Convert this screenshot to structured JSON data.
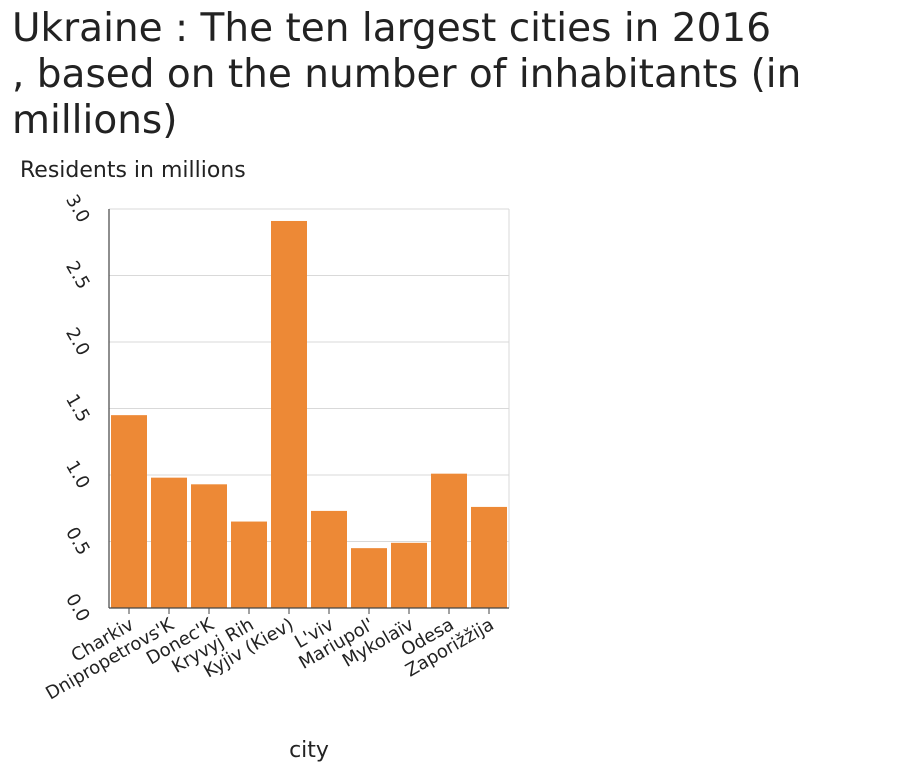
{
  "chart_data": {
    "type": "bar",
    "title": "Ukraine : The ten largest cities in 2016\n, based on the number of inhabitants (in\nmillions)",
    "xlabel": "city",
    "ylabel": "Residents in millions",
    "categories": [
      "Charkiv",
      "Dnipropetrovs'K",
      "Donec'K",
      "Kryvyj Rih",
      "Kyjiv (Kiev)",
      "L'viv",
      "Mariupol'",
      "Mykolaïv",
      "Odesa",
      "Zaporižžija"
    ],
    "values": [
      1.45,
      0.98,
      0.93,
      0.65,
      2.91,
      0.73,
      0.45,
      0.49,
      1.01,
      0.76
    ],
    "ylim": [
      0,
      3.0
    ],
    "yticks": [
      "0.0",
      "0.5",
      "1.0",
      "1.5",
      "2.0",
      "2.5",
      "3.0"
    ],
    "grid": true,
    "bar_color": "#ED8936"
  }
}
